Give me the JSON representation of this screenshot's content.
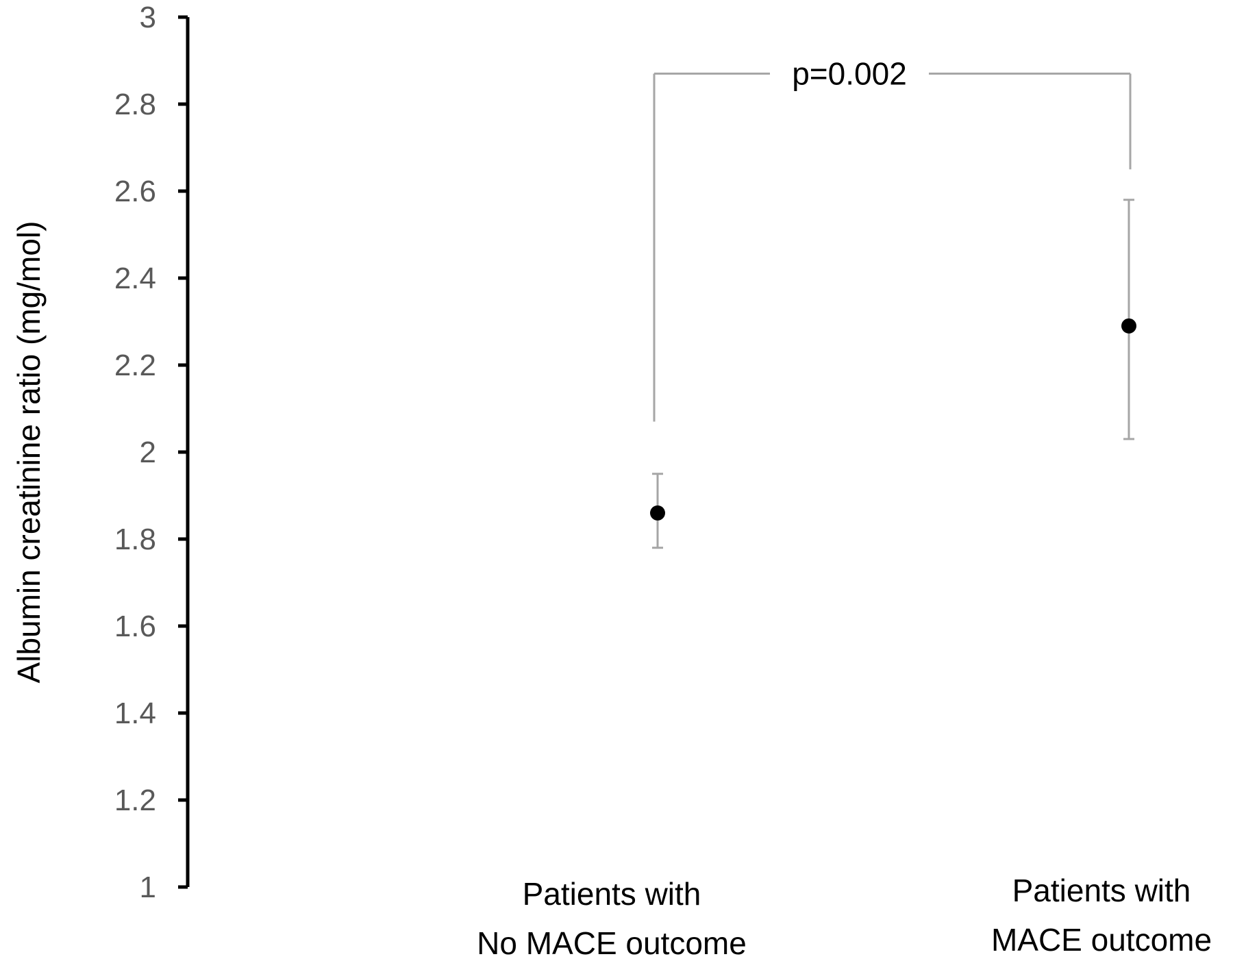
{
  "chart_data": {
    "type": "scatter",
    "ylabel": "Albumin creatinine ratio (mg/mol)",
    "xlabel": "",
    "ylim": [
      1,
      3
    ],
    "yticks": [
      1,
      1.2,
      1.4,
      1.6,
      1.8,
      2,
      2.2,
      2.4,
      2.6,
      2.8,
      3
    ],
    "ytick_labels": [
      "1",
      "1.2",
      "1.4",
      "1.6",
      "1.8",
      "2",
      "2.2",
      "2.4",
      "2.6",
      "2.8",
      "3"
    ],
    "grid": false,
    "categories": [
      [
        "Patients with",
        "No MACE outcome"
      ],
      [
        "Patients with",
        "MACE outcome"
      ]
    ],
    "points": [
      {
        "category_index": 0,
        "mean": 1.86,
        "lower": 1.78,
        "upper": 1.95
      },
      {
        "category_index": 1,
        "mean": 2.29,
        "lower": 2.03,
        "upper": 2.58
      }
    ],
    "annotation": {
      "text": "p=0.002",
      "bracket_y": 2.87,
      "left_drop_y": 2.07,
      "right_drop_y": 2.65
    },
    "colors": {
      "marker": "#000000",
      "error_bar": "#a6a6a6",
      "axis": "#000000",
      "tick_label": "#595959",
      "bracket": "#a6a6a6"
    }
  }
}
